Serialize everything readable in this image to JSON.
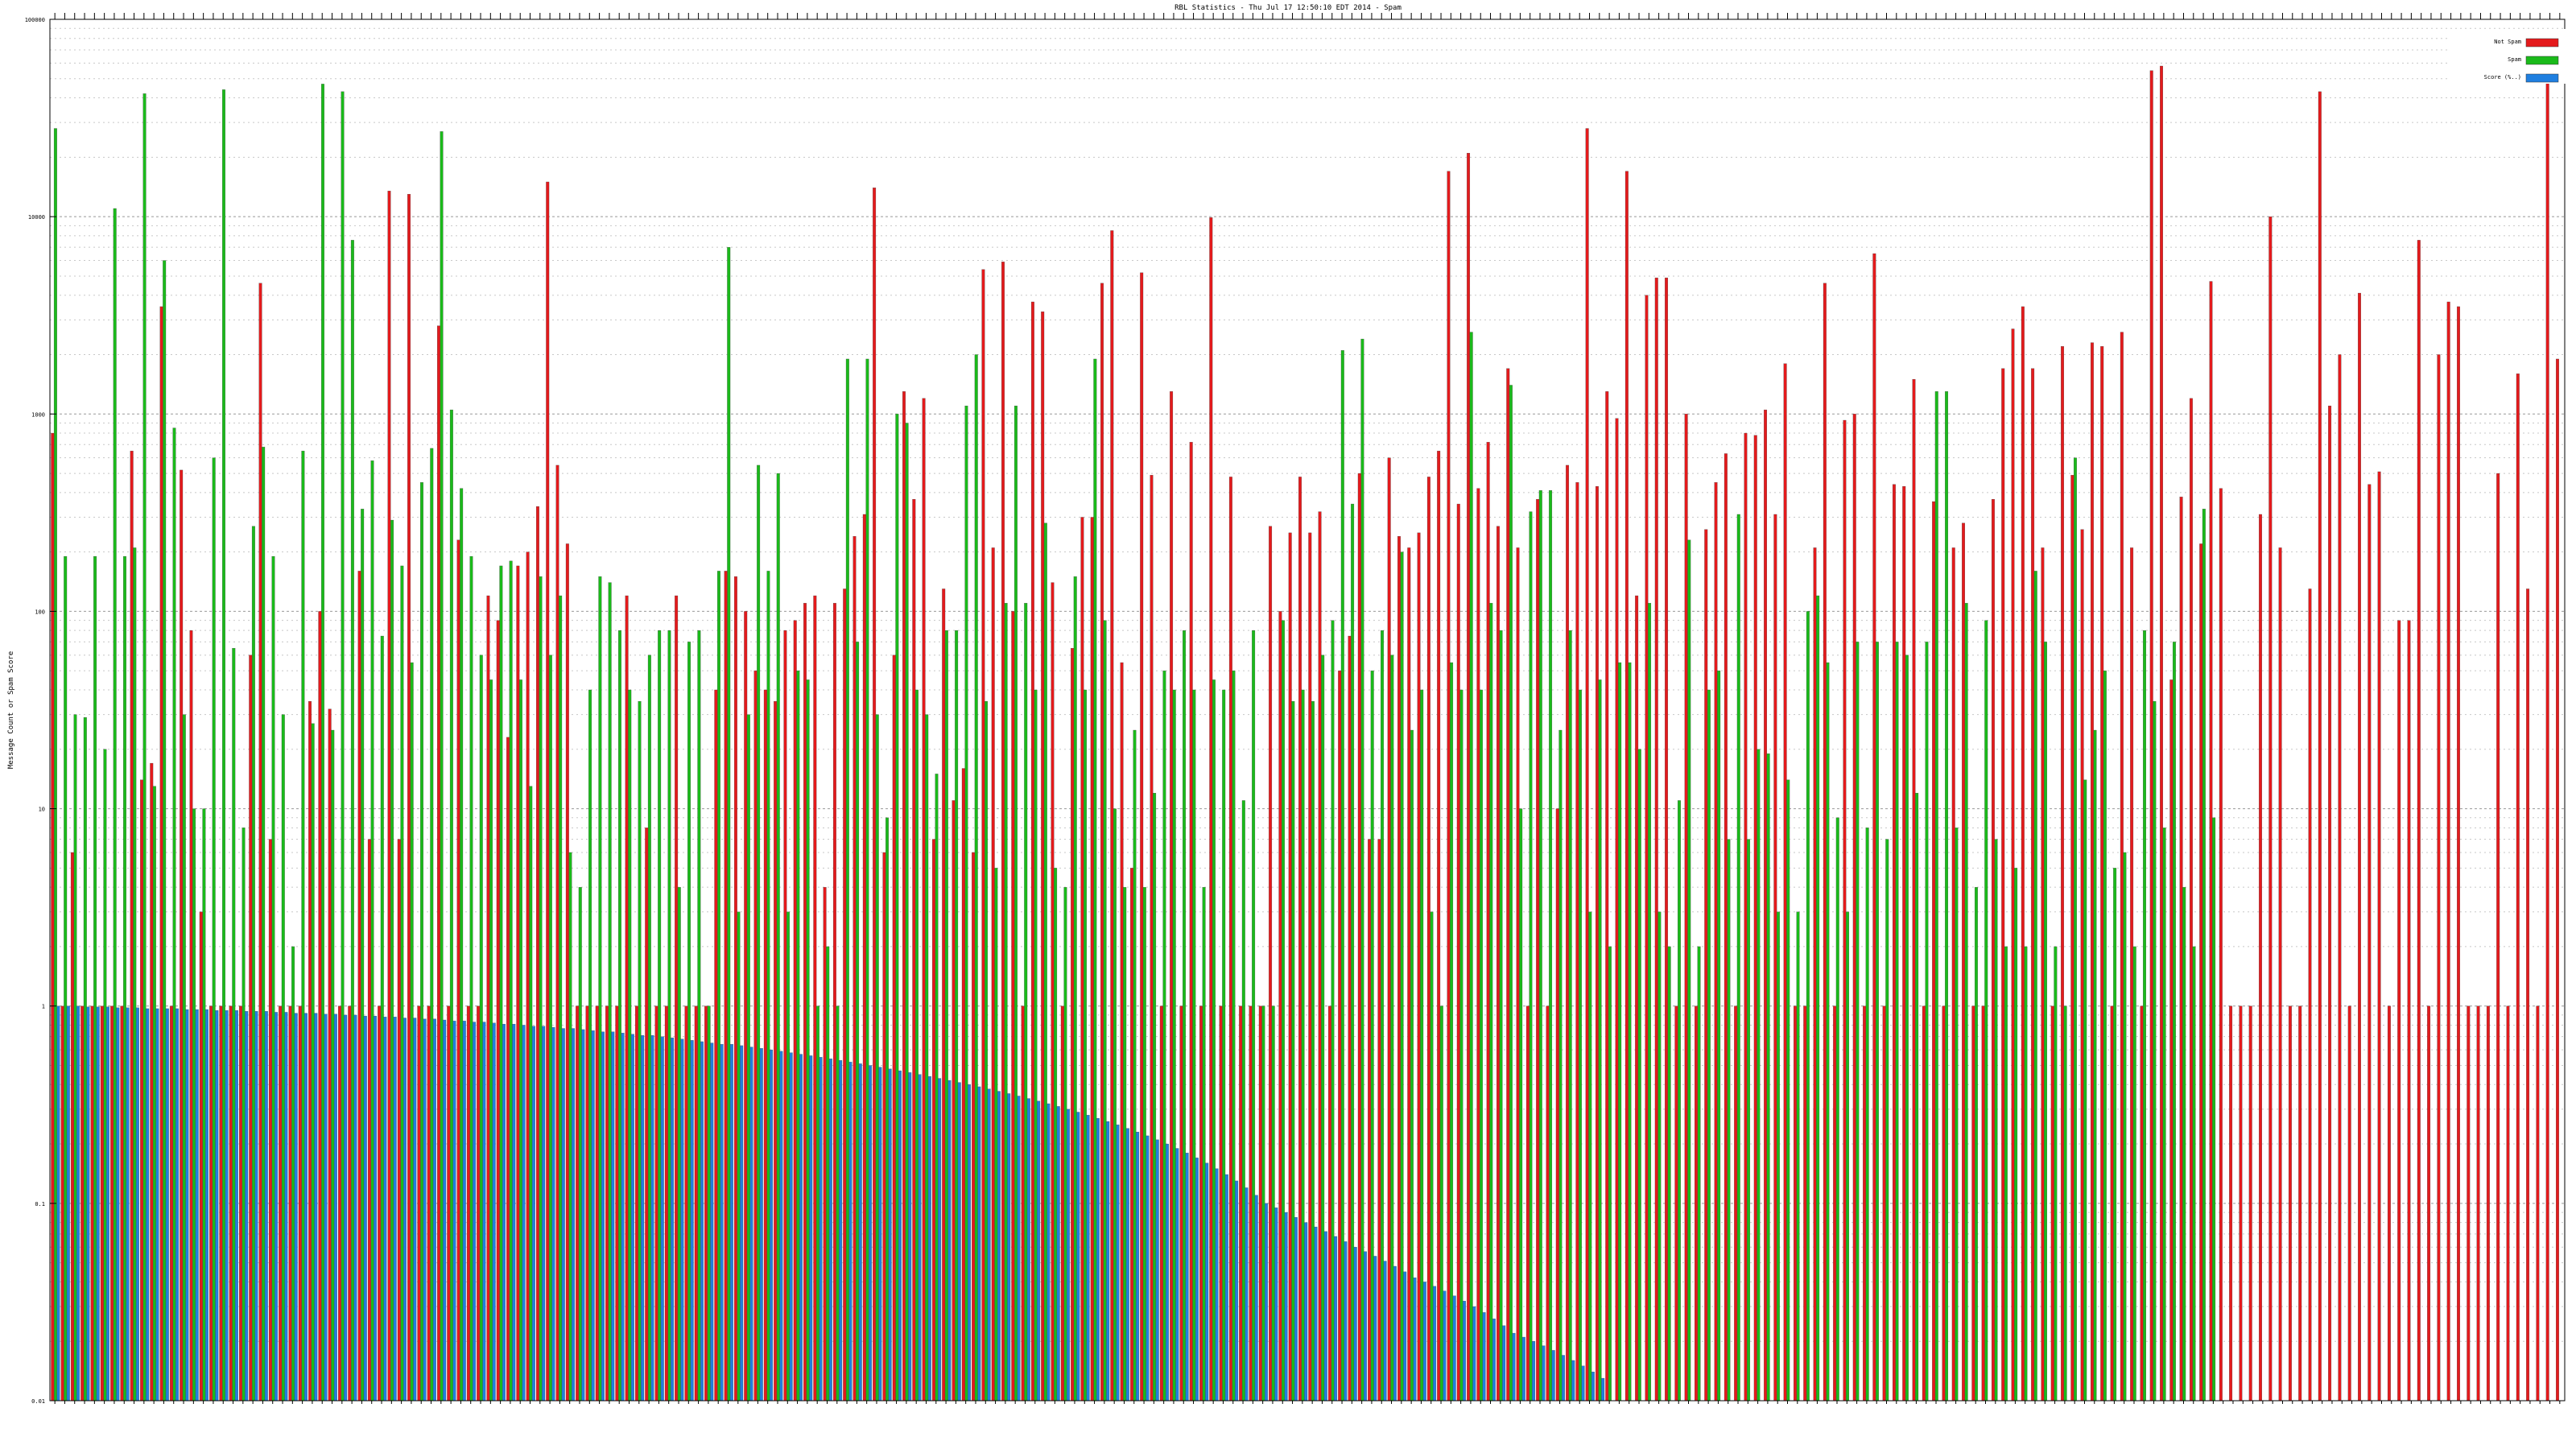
{
  "chart_data": {
    "type": "bar",
    "title": "RBL Statistics - Thu Jul 17 12:50:10 EDT 2014 - Spam",
    "ylabel": "Message Count or Spam Score",
    "xlabel": "",
    "yscale": "log",
    "ylim": [
      0.01,
      100000
    ],
    "yticks": [
      {
        "value": 0.01,
        "label": "0.01"
      },
      {
        "value": 0.1,
        "label": "0.1"
      },
      {
        "value": 1,
        "label": "1"
      },
      {
        "value": 10,
        "label": "10"
      },
      {
        "value": 100,
        "label": "100"
      },
      {
        "value": 1000,
        "label": "1000"
      },
      {
        "value": 10000,
        "label": "10000"
      },
      {
        "value": 100000,
        "label": "100000"
      }
    ],
    "grid": true,
    "legend_position": "top-right",
    "legend": [
      {
        "label": "Not Spam",
        "color": "#e41a1c"
      },
      {
        "label": "Spam",
        "color": "#1aba1a"
      },
      {
        "label": "Score (%..)",
        "color": "#1f7fe0"
      }
    ],
    "colors": {
      "not_spam": "#e41a1c",
      "spam": "#1aba1a",
      "score": "#1f7fe0"
    },
    "series": [
      {
        "name": "Not Spam",
        "values": [
          800,
          1,
          6,
          1,
          1,
          1,
          1,
          1,
          650,
          14,
          17,
          3500,
          1,
          520,
          80,
          3,
          1,
          1,
          1,
          1,
          60,
          4600,
          7,
          1,
          1,
          1,
          35,
          100,
          32,
          1,
          1,
          160,
          7,
          1,
          13500,
          7,
          13000,
          1,
          1,
          2800,
          1,
          230,
          1,
          1,
          120,
          90,
          23,
          170,
          200,
          340,
          15000,
          550,
          220,
          1,
          1,
          1,
          1,
          1,
          120,
          1,
          8,
          1,
          1,
          120,
          1,
          1,
          1,
          40,
          160,
          150,
          100,
          50,
          40,
          35,
          80,
          90,
          110,
          120,
          4,
          110,
          130,
          240,
          310,
          14000,
          6,
          60,
          1300,
          370,
          1200,
          7,
          130,
          11,
          16,
          6,
          5400,
          210,
          5900,
          100,
          1,
          3700,
          3300,
          140,
          1,
          65,
          300,
          300,
          4600,
          8500,
          55,
          5,
          5200,
          490,
          1,
          1300,
          1,
          720,
          1,
          9900,
          1,
          480,
          1,
          1,
          1,
          270,
          100,
          250,
          480,
          250,
          320,
          1,
          50,
          75,
          500,
          7,
          7,
          600,
          240,
          210,
          250,
          480,
          650,
          17000,
          350,
          21000,
          420,
          720,
          270,
          1700,
          210,
          1,
          370,
          1,
          10,
          550,
          450,
          28000,
          430,
          1300,
          950,
          17000,
          120,
          4000,
          4900,
          4900,
          1,
          1000,
          1,
          260,
          450,
          630,
          1,
          800,
          780,
          1050,
          310,
          1800,
          1,
          1,
          210,
          4600,
          1,
          930,
          1000,
          1,
          6500,
          1,
          440,
          430,
          1500,
          1,
          360,
          1,
          210,
          280,
          1,
          1,
          370,
          1700,
          2700,
          3500,
          1700,
          210,
          1,
          2200,
          490,
          260,
          2300,
          2200,
          1,
          2600,
          210,
          1,
          55000,
          58000,
          45,
          380,
          1200,
          220,
          4700,
          420,
          1,
          1,
          1,
          310,
          10000,
          210,
          1,
          1,
          130,
          43000,
          1100,
          2000,
          1,
          4100,
          440,
          510,
          1,
          90,
          90,
          7600,
          1,
          2000,
          3700,
          3500,
          1,
          1,
          1,
          500,
          1,
          1600,
          130,
          1,
          50000,
          1900
        ]
      },
      {
        "name": "Spam",
        "values": [
          28000,
          190,
          30,
          29,
          190,
          20,
          11000,
          190,
          210,
          42000,
          13,
          6000,
          850,
          30,
          10,
          10,
          600,
          44000,
          65,
          8,
          270,
          680,
          190,
          30,
          2,
          650,
          27,
          47000,
          25,
          43000,
          7600,
          330,
          580,
          75,
          290,
          170,
          55,
          450,
          670,
          27000,
          1050,
          420,
          190,
          60,
          45,
          170,
          180,
          45,
          13,
          150,
          60,
          120,
          6,
          4,
          40,
          150,
          140,
          80,
          40,
          35,
          60,
          80,
          80,
          4,
          70,
          80,
          1,
          160,
          7000,
          3,
          30,
          550,
          160,
          500,
          3,
          50,
          45,
          1,
          2,
          1,
          1900,
          70,
          1900,
          30,
          9,
          1000,
          900,
          40,
          30,
          15,
          80,
          80,
          1100,
          2000,
          35,
          5,
          110,
          1100,
          110,
          40,
          280,
          5,
          4,
          150,
          40,
          1900,
          90,
          10,
          4,
          25,
          4,
          12,
          50,
          40,
          80,
          40,
          4,
          45,
          40,
          50,
          11,
          80,
          1,
          1,
          90,
          35,
          40,
          35,
          60,
          90,
          2100,
          350,
          2400,
          50,
          80,
          60,
          200,
          25,
          40,
          3,
          1,
          55,
          40,
          2600,
          40,
          110,
          80,
          1400,
          10,
          320,
          410,
          410,
          25,
          80,
          40,
          3,
          45,
          2,
          55,
          55,
          20,
          110,
          3,
          2,
          11,
          230,
          2,
          40,
          50,
          7,
          310,
          7,
          20,
          19,
          3,
          14,
          3,
          100,
          120,
          55,
          9,
          3,
          70,
          8,
          70,
          7,
          70,
          60,
          12,
          70,
          1300,
          1300,
          8,
          110,
          4,
          90,
          7,
          2,
          5,
          2,
          160,
          70,
          2,
          1,
          600,
          14,
          25,
          50,
          5,
          6,
          2,
          80,
          35,
          8,
          70,
          4,
          2,
          330,
          9
        ]
      },
      {
        "name": "Score (%..)",
        "values": [
          1,
          1,
          1,
          0.99,
          0.99,
          0.99,
          0.98,
          0.98,
          0.98,
          0.97,
          0.97,
          0.97,
          0.97,
          0.96,
          0.96,
          0.96,
          0.95,
          0.95,
          0.95,
          0.94,
          0.94,
          0.94,
          0.93,
          0.93,
          0.92,
          0.92,
          0.92,
          0.91,
          0.91,
          0.9,
          0.9,
          0.89,
          0.89,
          0.88,
          0.88,
          0.87,
          0.87,
          0.86,
          0.86,
          0.85,
          0.84,
          0.84,
          0.83,
          0.83,
          0.82,
          0.81,
          0.81,
          0.8,
          0.79,
          0.79,
          0.78,
          0.77,
          0.77,
          0.76,
          0.75,
          0.74,
          0.74,
          0.73,
          0.72,
          0.71,
          0.71,
          0.7,
          0.69,
          0.68,
          0.67,
          0.66,
          0.65,
          0.64,
          0.64,
          0.63,
          0.62,
          0.61,
          0.6,
          0.59,
          0.58,
          0.57,
          0.56,
          0.55,
          0.54,
          0.53,
          0.52,
          0.51,
          0.5,
          0.49,
          0.48,
          0.47,
          0.46,
          0.45,
          0.44,
          0.43,
          0.42,
          0.41,
          0.4,
          0.39,
          0.38,
          0.37,
          0.36,
          0.35,
          0.34,
          0.33,
          0.32,
          0.31,
          0.3,
          0.29,
          0.28,
          0.27,
          0.26,
          0.25,
          0.24,
          0.23,
          0.22,
          0.21,
          0.2,
          0.19,
          0.18,
          0.17,
          0.16,
          0.15,
          0.14,
          0.13,
          0.12,
          0.11,
          0.1,
          0.095,
          0.09,
          0.085,
          0.08,
          0.076,
          0.072,
          0.068,
          0.064,
          0.06,
          0.057,
          0.054,
          0.051,
          0.048,
          0.045,
          0.042,
          0.04,
          0.038,
          0.036,
          0.034,
          0.032,
          0.03,
          0.028,
          0.026,
          0.024,
          0.022,
          0.021,
          0.02,
          0.019,
          0.018,
          0.017,
          0.016,
          0.015,
          0.014,
          0.013
        ]
      }
    ]
  }
}
